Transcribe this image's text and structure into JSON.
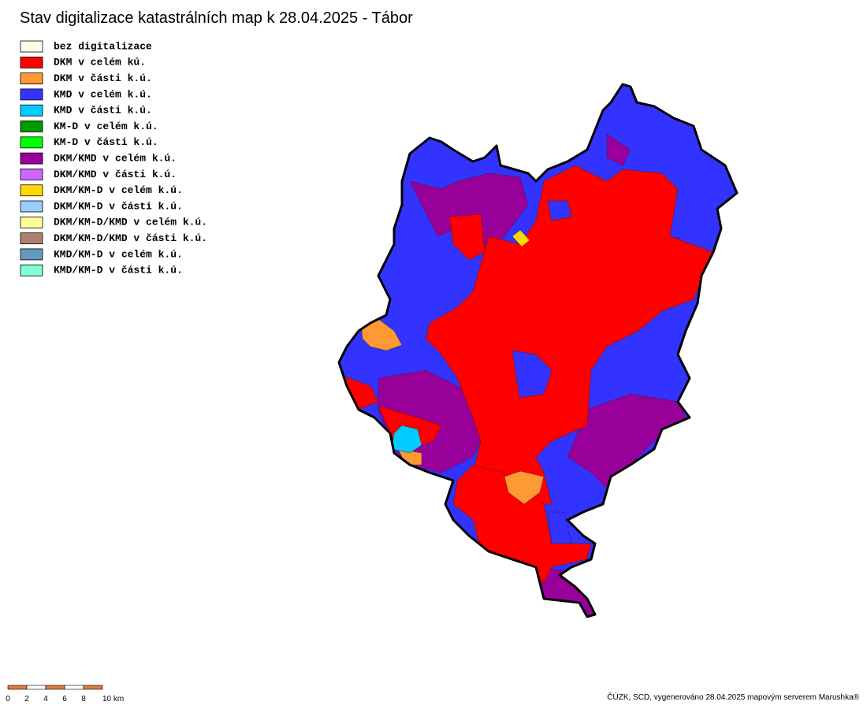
{
  "title": "Stav digitalizace katastrálních map k 28.04.2025 - Tábor",
  "legend": [
    {
      "label": "bez digitalizace",
      "color": "#ffffe8"
    },
    {
      "label": "DKM v celém kú.",
      "color": "#ff0000"
    },
    {
      "label": "DKM v části k.ú.",
      "color": "#ff9933"
    },
    {
      "label": "KMD v celém k.ú.",
      "color": "#3333ff"
    },
    {
      "label": "KMD v části k.ú.",
      "color": "#00ccff"
    },
    {
      "label": "KM-D v celém k.ú.",
      "color": "#009900"
    },
    {
      "label": "KM-D v části k.ú.",
      "color": "#00ff00"
    },
    {
      "label": "DKM/KMD v celém k.ú.",
      "color": "#990099"
    },
    {
      "label": "DKM/KMD v části k.ú.",
      "color": "#cc66ff"
    },
    {
      "label": "DKM/KM-D v celém k.ú.",
      "color": "#ffd700"
    },
    {
      "label": "DKM/KM-D v části k.ú.",
      "color": "#99ccff"
    },
    {
      "label": "DKM/KM-D/KMD v celém k.ú.",
      "color": "#ffff99"
    },
    {
      "label": "DKM/KM-D/KMD v části k.ú.",
      "color": "#b07f70"
    },
    {
      "label": "KMD/KM-D v celém k.ú.",
      "color": "#6699bb"
    },
    {
      "label": "KMD/KM-D v části k.ú.",
      "color": "#80ffd5"
    }
  ],
  "scale_bar": {
    "labels": [
      "0",
      "2",
      "4",
      "6",
      "8",
      "10 km"
    ]
  },
  "footer": "ČÚZK, SCD, vygenerováno 28.04.2025 mapovým serverem Marushka®"
}
